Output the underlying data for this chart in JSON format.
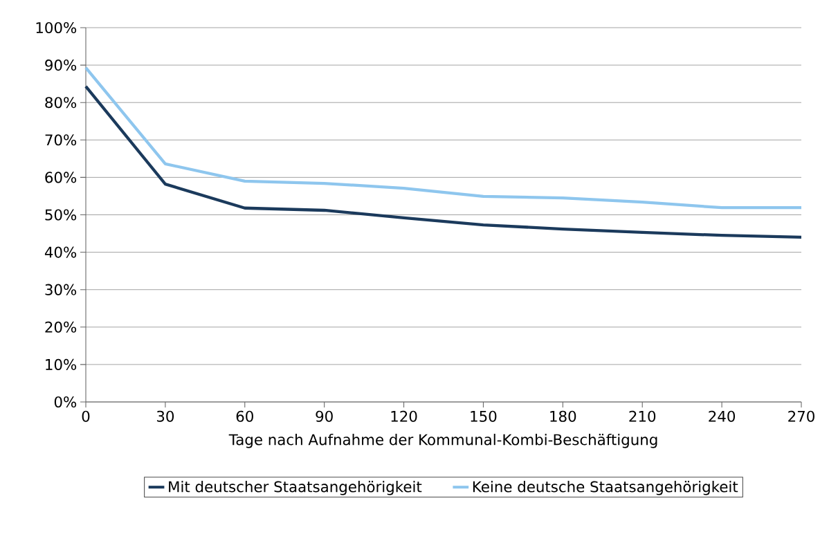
{
  "chart_data": {
    "type": "line",
    "xlabel": "Tage nach Aufnahme der Kommunal-Kombi-Beschäftigung",
    "x": [
      0,
      30,
      60,
      90,
      120,
      150,
      180,
      210,
      240,
      270
    ],
    "series": [
      {
        "name": "Mit deutscher Staatsangehörigkeit",
        "color": "#1b3a5c",
        "values": [
          84.3,
          58.2,
          51.8,
          51.2,
          49.2,
          47.3,
          46.2,
          45.3,
          44.5,
          44.0
        ]
      },
      {
        "name": "Keine deutsche Staatsangehörigkeit",
        "color": "#8ec6ee",
        "values": [
          89.3,
          63.6,
          59.0,
          58.4,
          57.1,
          54.9,
          54.5,
          53.4,
          51.9,
          51.9
        ]
      }
    ],
    "xlim": [
      0,
      270
    ],
    "xticks": [
      0,
      30,
      60,
      90,
      120,
      150,
      180,
      210,
      240,
      270
    ],
    "ylim": [
      0,
      100
    ],
    "yticks": [
      {
        "value": 0,
        "label": "0%"
      },
      {
        "value": 10,
        "label": "10%"
      },
      {
        "value": 20,
        "label": "20%"
      },
      {
        "value": 30,
        "label": "30%"
      },
      {
        "value": 40,
        "label": "40%"
      },
      {
        "value": 50,
        "label": "50%"
      },
      {
        "value": 60,
        "label": "60%"
      },
      {
        "value": 70,
        "label": "70%"
      },
      {
        "value": 80,
        "label": "80%"
      },
      {
        "value": 90,
        "label": "90%"
      },
      {
        "value": 100,
        "label": "100%"
      }
    ],
    "grid": "y",
    "legend": "bottom",
    "marker": "none",
    "line_style": "solid"
  }
}
